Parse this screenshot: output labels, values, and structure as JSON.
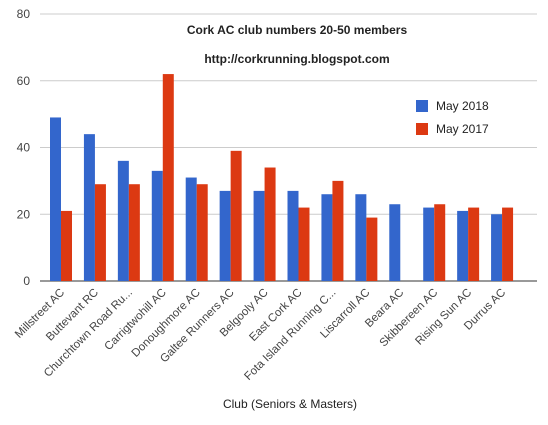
{
  "chart_data": {
    "type": "bar",
    "title": "Cork AC club numbers 20-50 members",
    "subtitle": "http://corkrunning.blogspot.com",
    "xlabel": "Club (Seniors & Masters)",
    "ylabel": "",
    "ylim": [
      0,
      80
    ],
    "yticks": [
      "0",
      "20",
      "40",
      "60",
      "80"
    ],
    "grid": true,
    "legend_position": "right",
    "categories": [
      "Millstreet AC",
      "Buttevant RC",
      "Churchtown Road Ru...",
      "Carrigtwohill AC",
      "Donoughmore AC",
      "Galtee Runners AC",
      "Belgooly AC",
      "East Cork AC",
      "Fota Island Running C...",
      "Liscarroll AC",
      "Beara AC",
      "Skibbereen AC",
      "Rising Sun AC",
      "Durrus AC"
    ],
    "series": [
      {
        "name": "May 2018",
        "color": "#3366cc",
        "values": [
          49,
          44,
          36,
          33,
          31,
          27,
          27,
          27,
          26,
          26,
          23,
          22,
          21,
          20
        ]
      },
      {
        "name": "May 2017",
        "color": "#dc3912",
        "values": [
          21,
          29,
          29,
          62,
          29,
          39,
          34,
          22,
          30,
          19,
          null,
          23,
          22,
          22
        ]
      }
    ]
  }
}
